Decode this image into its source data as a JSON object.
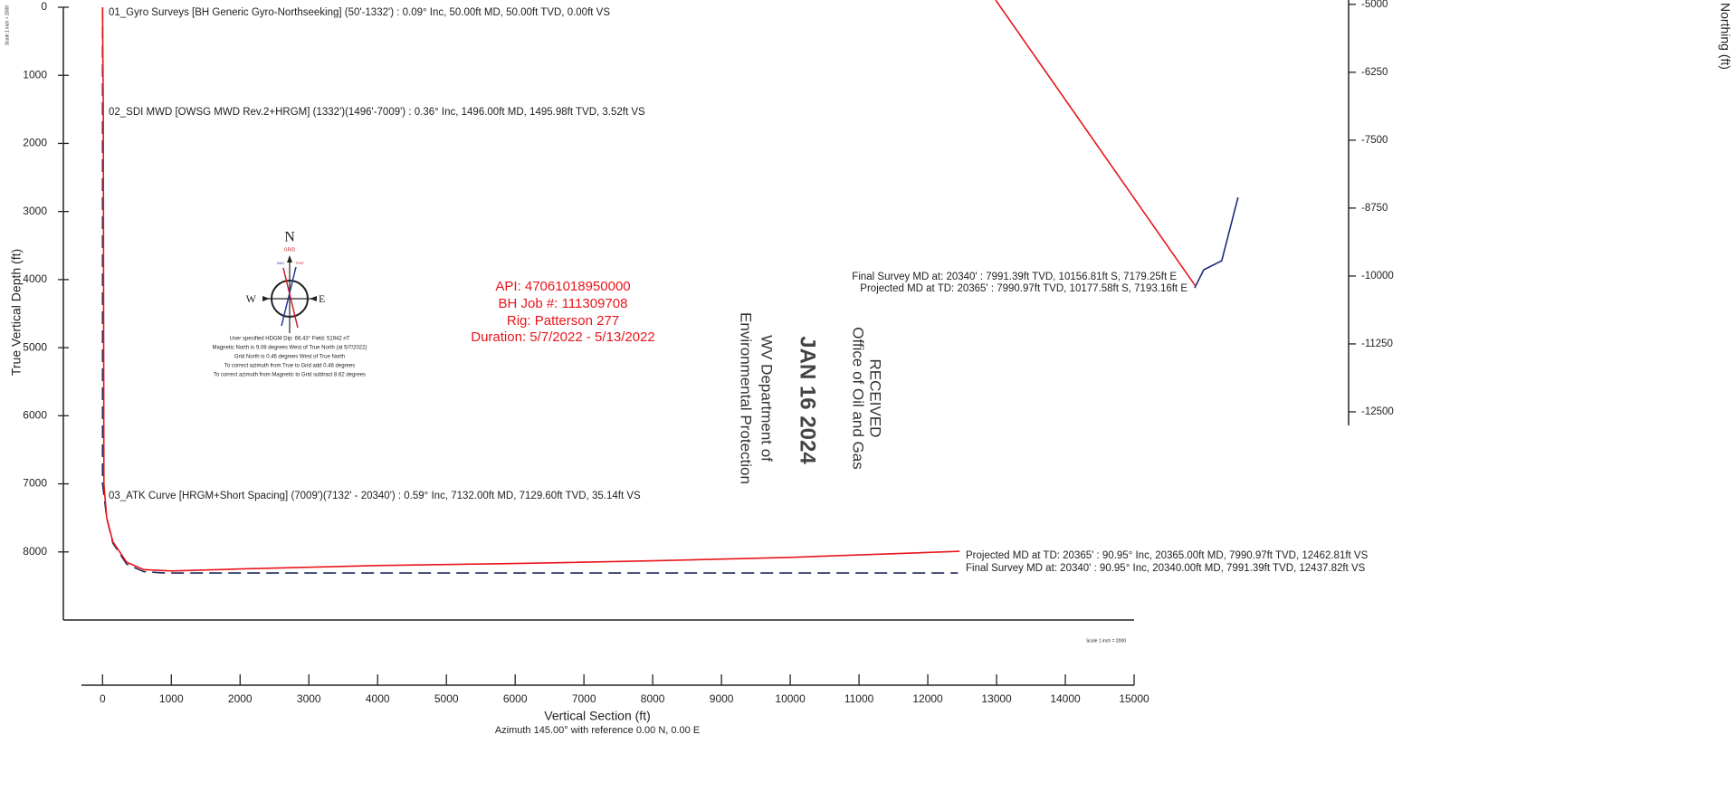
{
  "chart_data": [
    {
      "type": "line",
      "x_label": "Vertical Section (ft)",
      "x_sublabel": "Azimuth 145.00° with reference 0.00 N, 0.00 E",
      "y_label": "True Vertical Depth (ft)",
      "y_inverted": true,
      "xlim": [
        -570,
        15000
      ],
      "ylim": [
        0,
        9000
      ],
      "xticks": [
        0,
        1000,
        2000,
        3000,
        4000,
        5000,
        6000,
        7000,
        8000,
        9000,
        10000,
        11000,
        12000,
        13000,
        14000,
        15000
      ],
      "yticks": [
        0,
        1000,
        2000,
        3000,
        4000,
        5000,
        6000,
        7000,
        8000
      ],
      "scale_labels": [
        "Scale 1 inch = 2000",
        "Scale 1 inch = 2000"
      ],
      "series": [
        {
          "color": "#1f2a5a",
          "dashed": true,
          "x": [
            0,
            0,
            60,
            150,
            350,
            600,
            900,
            12437.82
          ],
          "values": [
            0,
            7000,
            7500,
            7870,
            8180,
            8290,
            8310,
            8310
          ]
        },
        {
          "color": "#e8151b",
          "dashed": false,
          "x": [
            0,
            10,
            20,
            60,
            150,
            350,
            600,
            1000,
            2000,
            4000,
            6000,
            8000,
            10000,
            12462.81
          ],
          "values": [
            0,
            1500,
            7000,
            7500,
            7850,
            8150,
            8260,
            8280,
            8250,
            8200,
            8170,
            8130,
            8080,
            7990.97
          ]
        }
      ],
      "annotations": [
        "01_Gyro Surveys [BH Generic Gyro-Northseeking] (50'-1332') : 0.09° Inc, 50.00ft MD, 50.00ft TVD, 0.00ft VS",
        "02_SDI MWD [OWSG MWD Rev.2+HRGM] (1332')(1496'-7009') : 0.36° Inc, 1496.00ft MD, 1495.98ft TVD, 3.52ft VS",
        "03_ATK Curve [HRGM+Short Spacing] (7009')(7132' - 20340') : 0.59° Inc, 7132.00ft MD, 7129.60ft TVD, 35.14ft VS",
        "Projected MD at TD: 20365' : 90.95° Inc, 20365.00ft MD, 7990.97ft TVD, 12462.81ft VS",
        "Final Survey MD at: 20340' : 90.95° Inc, 20340.00ft MD, 7991.39ft TVD, 12437.82ft VS"
      ],
      "well_info": [
        "API: 47061018950000",
        "BH Job #: 111309708",
        "Rig: Patterson 277",
        "Duration: 5/7/2022 - 5/13/2022"
      ],
      "compass": {
        "north": "N",
        "grid": "GRID",
        "west": "W",
        "east": "E",
        "mag": "MAG",
        "true": "TRUE",
        "notes": [
          "User specified HDGM Dip: 66.43° Field: 51942 nT",
          "Magnetic North is 9.08 degrees West of True North (at 5/7/2022)",
          "Grid North is 0.46 degrees West of True North",
          "To correct azimuth from True to Grid add 0.46 degrees",
          "To correct azimuth from Magnetic to Grid subtract 8.62 degrees"
        ]
      },
      "stamp": [
        "RECEIVED",
        "Office of Oil and Gas",
        "JAN 16 2024",
        "WV Department of",
        "Environmental Protection"
      ]
    },
    {
      "type": "line",
      "y_label": "Northing (ft)",
      "xlim": [
        2850,
        10020
      ],
      "ylim": [
        -12750,
        -4920
      ],
      "yticks": [
        -5000,
        -6250,
        -7500,
        -8750,
        -10000,
        -11250,
        -12500
      ],
      "series": [
        {
          "color": "#1f2a7a",
          "x": [
            7183,
            7350,
            7683,
            7983
          ],
          "values": [
            -10220,
            -9887,
            -9720,
            -8553
          ]
        },
        {
          "color": "#e8151b",
          "x": [
            3517,
            7193.16
          ],
          "values": [
            -4920,
            -10177.58
          ]
        }
      ],
      "annotations": [
        "Final Survey MD at: 20340' : 7991.39ft TVD, 10156.81ft S, 7179.25ft E",
        "Projected MD at TD: 20365' : 7990.97ft TVD, 10177.58ft S, 7193.16ft E"
      ]
    }
  ]
}
